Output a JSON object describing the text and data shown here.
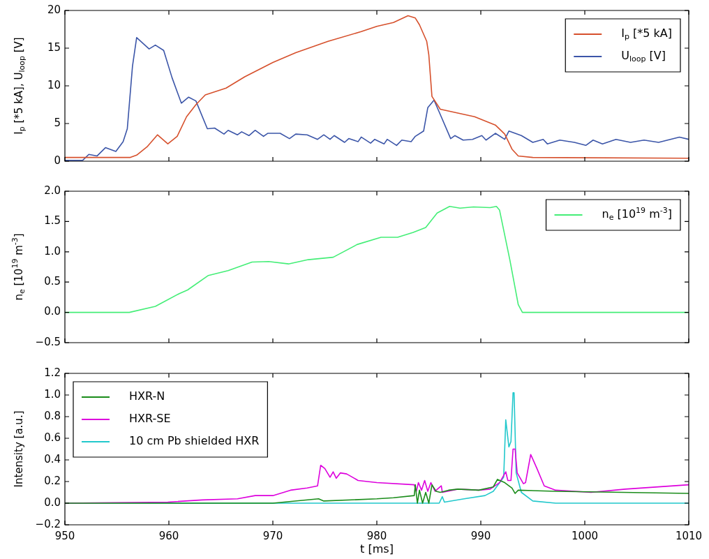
{
  "chart_data": [
    {
      "type": "line",
      "ylabel": "I$_{p}$ [*5 kA], U$_{loop}$ [V]",
      "xlim": [
        950,
        1010
      ],
      "xticks": [
        950,
        960,
        970,
        980,
        990,
        1000,
        1010
      ],
      "ylim": [
        0,
        20
      ],
      "yticks": [
        0,
        5,
        10,
        15,
        20
      ],
      "tick_labels": "y",
      "grid": false,
      "legend": "top right",
      "marker": "none",
      "series": [
        {
          "name": "I$_{p}$ [*5 kA]",
          "color": "#d6502c",
          "x": [
            950,
            956.3,
            956.9,
            957.9,
            958.9,
            959.9,
            960.8,
            961.7,
            962.6,
            963.5,
            965.5,
            967.3,
            970,
            972.2,
            975.3,
            978.5,
            980,
            981.6,
            983,
            983.7,
            984.1,
            984.8,
            985,
            985.3,
            986.1,
            989.4,
            991.4,
            992.3,
            993,
            993.6,
            995,
            1010
          ],
          "values": [
            0.5,
            0.5,
            0.8,
            1.9,
            3.5,
            2.3,
            3.3,
            5.9,
            7.5,
            8.8,
            9.7,
            11.2,
            13.1,
            14.4,
            15.9,
            17.2,
            17.9,
            18.4,
            19.3,
            19.0,
            18.1,
            15.9,
            14.1,
            8.6,
            6.9,
            5.9,
            4.8,
            3.6,
            1.6,
            0.7,
            0.5,
            0.4
          ]
        },
        {
          "name": "U$_{loop}$ [V]",
          "color": "#3b55a8",
          "x": [
            950,
            951.7,
            952.3,
            953.1,
            953.9,
            954.9,
            955.6,
            956.0,
            956.5,
            956.9,
            958.1,
            958.7,
            959.5,
            960.3,
            961.2,
            961.9,
            962.6,
            963.7,
            964.4,
            965.3,
            965.7,
            966.6,
            967.0,
            967.7,
            968.3,
            969.1,
            969.5,
            970.7,
            971.6,
            972.2,
            973.3,
            974.3,
            974.9,
            975.5,
            975.9,
            976.9,
            977.3,
            978.2,
            978.5,
            979.4,
            979.8,
            980.7,
            981.0,
            981.9,
            982.4,
            983.3,
            983.7,
            984.5,
            984.9,
            985.5,
            986.1,
            987.1,
            987.5,
            988.3,
            989.2,
            990.1,
            990.5,
            991.4,
            992.3,
            992.7,
            993.9,
            995.0,
            996.0,
            996.4,
            997.6,
            999.0,
            1000.1,
            1000.8,
            1001.7,
            1003.0,
            1004.4,
            1005.7,
            1007.1,
            1009.1,
            1010
          ],
          "values": [
            0.1,
            0.1,
            0.9,
            0.7,
            1.8,
            1.3,
            2.6,
            4.3,
            12.6,
            16.4,
            14.9,
            15.4,
            14.7,
            11.1,
            7.7,
            8.5,
            8.0,
            4.3,
            4.4,
            3.6,
            4.1,
            3.5,
            3.9,
            3.4,
            4.1,
            3.3,
            3.7,
            3.7,
            3.0,
            3.6,
            3.5,
            2.9,
            3.5,
            2.9,
            3.4,
            2.5,
            3.0,
            2.6,
            3.2,
            2.4,
            2.9,
            2.3,
            2.9,
            2.1,
            2.8,
            2.6,
            3.3,
            4.0,
            7.1,
            8.1,
            6.2,
            3.0,
            3.4,
            2.8,
            2.9,
            3.4,
            2.8,
            3.7,
            2.9,
            4.0,
            3.4,
            2.5,
            2.9,
            2.3,
            2.8,
            2.5,
            2.1,
            2.8,
            2.3,
            2.9,
            2.5,
            2.8,
            2.5,
            3.2,
            2.9
          ]
        }
      ]
    },
    {
      "type": "line",
      "ylabel": "n$_{e}$ [10$^{19}$ m$^{-3}$]",
      "xlim": [
        950,
        1010
      ],
      "xticks": [
        950,
        960,
        970,
        980,
        990,
        1000,
        1010
      ],
      "ylim": [
        -0.5,
        2.0
      ],
      "yticks": [
        {
          "value": -0.5,
          "label": "−0.5"
        },
        {
          "value": 0,
          "label": "0.0"
        },
        {
          "value": 0.5,
          "label": "0.5"
        },
        {
          "value": 1,
          "label": "1.0"
        },
        {
          "value": 1.5,
          "label": "1.5"
        },
        {
          "value": 2,
          "label": "2.0"
        }
      ],
      "tick_labels": "y",
      "grid": false,
      "legend": "top right",
      "marker": "none",
      "series": [
        {
          "name": "n$_{e}$ [10$^{19}$ m$^{-3}$]",
          "color": "#44ee77",
          "x": [
            950,
            956.2,
            958.7,
            961.0,
            961.8,
            963.8,
            965.7,
            968.0,
            969.6,
            971.5,
            973.4,
            975.8,
            978.1,
            980.4,
            982.0,
            983.5,
            984.7,
            985.8,
            987.0,
            988.0,
            989.3,
            990.9,
            991.5,
            991.8,
            992.8,
            993.6,
            994.0,
            1010
          ],
          "values": [
            0,
            0,
            0.1,
            0.31,
            0.37,
            0.61,
            0.69,
            0.83,
            0.84,
            0.8,
            0.87,
            0.91,
            1.12,
            1.24,
            1.24,
            1.32,
            1.4,
            1.64,
            1.75,
            1.72,
            1.74,
            1.73,
            1.75,
            1.69,
            0.86,
            0.13,
            0,
            0
          ]
        }
      ]
    },
    {
      "type": "line",
      "xlabel": "t [ms]",
      "ylabel": "Intensity [a.u.]",
      "xlim": [
        950,
        1010
      ],
      "xticks": [
        950,
        960,
        970,
        980,
        990,
        1000,
        1010
      ],
      "ylim": [
        -0.2,
        1.2
      ],
      "yticks": [
        {
          "value": -0.2,
          "label": "−0.2"
        },
        {
          "value": 0,
          "label": "0.0"
        },
        {
          "value": 0.2,
          "label": "0.2"
        },
        {
          "value": 0.4,
          "label": "0.4"
        },
        {
          "value": 0.6,
          "label": "0.6"
        },
        {
          "value": 0.8,
          "label": "0.8"
        },
        {
          "value": 1,
          "label": "1.0"
        },
        {
          "value": 1.2,
          "label": "1.2"
        }
      ],
      "grid": false,
      "legend": "top left",
      "marker": "none",
      "series": [
        {
          "name": "HXR-N",
          "color": "#1a8c1a",
          "x": [
            950,
            970,
            974.4,
            974.9,
            980.0,
            981.6,
            983.6,
            983.7,
            983.9,
            984.1,
            984.4,
            984.7,
            985.0,
            985.3,
            985.7,
            986.1,
            986.9,
            987.8,
            989.8,
            991.2,
            991.6,
            992.3,
            993.0,
            993.3,
            993.6,
            997.2,
            1010
          ],
          "values": [
            0,
            0,
            0.04,
            0.02,
            0.04,
            0.05,
            0.07,
            0.17,
            0,
            0.12,
            0,
            0.1,
            0,
            0.17,
            0.11,
            0.1,
            0.12,
            0.13,
            0.12,
            0.15,
            0.22,
            0.19,
            0.14,
            0.09,
            0.12,
            0.11,
            0.09
          ]
        },
        {
          "name": "HXR-SE",
          "color": "#dd00dd",
          "x": [
            950,
            959.9,
            963.2,
            966.6,
            968.3,
            970,
            971.7,
            973.3,
            974.3,
            974.6,
            975.0,
            975.5,
            975.8,
            976.1,
            976.5,
            977.1,
            978.2,
            980.0,
            983.6,
            983.8,
            984.0,
            984.3,
            984.6,
            984.9,
            985.2,
            985.6,
            986.2,
            986.3,
            987.8,
            989.8,
            990.9,
            991.8,
            992.4,
            992.6,
            992.9,
            993.1,
            993.3,
            993.5,
            994.1,
            994.3,
            994.8,
            995.4,
            996.1,
            997.2,
            1000.6,
            1003.9,
            1010
          ],
          "values": [
            0,
            0.01,
            0.03,
            0.04,
            0.07,
            0.07,
            0.12,
            0.14,
            0.16,
            0.35,
            0.32,
            0.24,
            0.29,
            0.23,
            0.28,
            0.27,
            0.21,
            0.19,
            0.17,
            0.11,
            0.19,
            0.12,
            0.21,
            0.11,
            0.19,
            0.11,
            0.16,
            0.1,
            0.13,
            0.12,
            0.13,
            0.19,
            0.29,
            0.21,
            0.21,
            0.5,
            0.5,
            0.28,
            0.18,
            0.19,
            0.45,
            0.32,
            0.16,
            0.12,
            0.1,
            0.13,
            0.17
          ]
        },
        {
          "name": "10 cm Pb shielded HXR",
          "color": "#22c8cc",
          "x": [
            950,
            986.0,
            986.3,
            986.5,
            988.4,
            990.4,
            991.2,
            992.2,
            992.4,
            992.7,
            992.9,
            993.1,
            993.2,
            993.4,
            993.9,
            995.0,
            997.2,
            1010
          ],
          "values": [
            0,
            0,
            0.06,
            0.01,
            0.04,
            0.07,
            0.11,
            0.24,
            0.77,
            0.52,
            0.57,
            1.02,
            1.02,
            0.28,
            0.1,
            0.02,
            0,
            0
          ]
        }
      ]
    }
  ]
}
